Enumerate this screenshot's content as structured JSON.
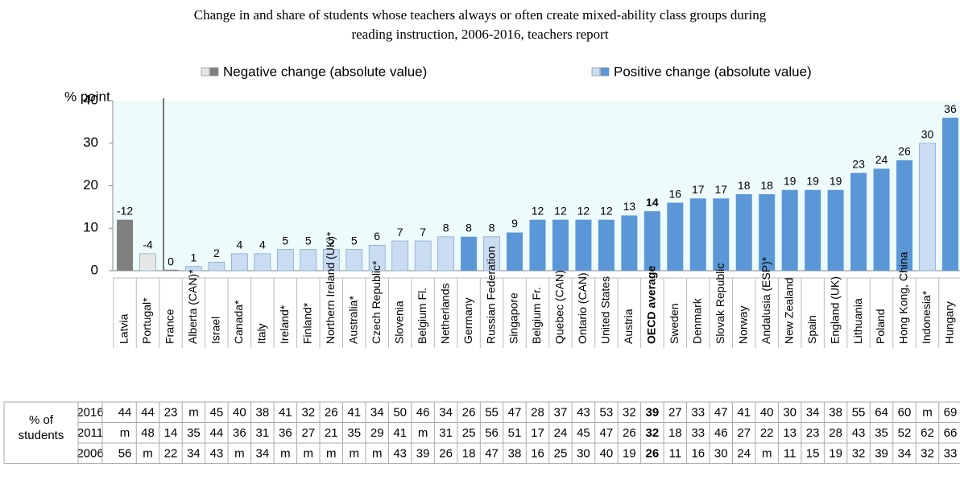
{
  "chart_data": {
    "type": "bar",
    "title": "Change in and share of students whose teachers always or often create mixed-ability class groups during",
    "title_line2": "reading instruction, 2006-2016, teachers report",
    "y_axis_label": "% point",
    "legend": [
      {
        "label": "Negative change (absolute value)",
        "colors": [
          "#e6e6e6",
          "#808080"
        ]
      },
      {
        "label": "Positive change (absolute value)",
        "colors": [
          "#c9dcf2",
          "#5b97d6"
        ]
      }
    ],
    "categories": [
      "Latvia",
      "Portugal*",
      "France",
      "Alberta (CAN)*",
      "Israel",
      "Canada*",
      "Italy",
      "Ireland*",
      "Finland*",
      "Northern Ireland (UK)*",
      "Australia*",
      "Czech Republic*",
      "Slovenia",
      "Belgium Fl.",
      "Netherlands",
      "Germany",
      "Russian Federation",
      "Singapore",
      "Belgium Fr.",
      "Quebec (CAN)",
      "Ontario (CAN)",
      "United States",
      "Austria",
      "OECD average",
      "Sweden",
      "Denmark",
      "Slovak Republic",
      "Norway",
      "Andalusia (ESP)*",
      "New Zealand",
      "Spain",
      "England (UK)",
      "Lithuania",
      "Poland",
      "Hong Kong, China",
      "Indonesia*",
      "Hungary"
    ],
    "values": [
      12,
      4,
      0,
      1,
      2,
      4,
      4,
      5,
      5,
      5,
      5,
      6,
      7,
      7,
      8,
      8,
      8,
      9,
      12,
      12,
      12,
      12,
      13,
      14,
      16,
      17,
      17,
      18,
      18,
      19,
      19,
      19,
      23,
      24,
      26,
      30,
      36
    ],
    "value_labels": [
      "-12",
      "-4",
      "0",
      "1",
      "2",
      "4",
      "4",
      "5",
      "5",
      "5",
      "5",
      "6",
      "7",
      "7",
      "8",
      "8",
      "8",
      "9",
      "12",
      "12",
      "12",
      "12",
      "13",
      "14",
      "16",
      "17",
      "17",
      "18",
      "18",
      "19",
      "19",
      "19",
      "23",
      "24",
      "26",
      "30",
      "36"
    ],
    "colors": [
      "#808080",
      "#e6e6e6",
      "#808080",
      "#c9dcf2",
      "#c9dcf2",
      "#c9dcf2",
      "#c9dcf2",
      "#c9dcf2",
      "#c9dcf2",
      "#c9dcf2",
      "#c9dcf2",
      "#c9dcf2",
      "#c9dcf2",
      "#c9dcf2",
      "#c9dcf2",
      "#5b97d6",
      "#c9dcf2",
      "#5b97d6",
      "#5b97d6",
      "#5b97d6",
      "#5b97d6",
      "#5b97d6",
      "#5b97d6",
      "#5b97d6",
      "#5b97d6",
      "#5b97d6",
      "#5b97d6",
      "#5b97d6",
      "#5b97d6",
      "#5b97d6",
      "#5b97d6",
      "#5b97d6",
      "#5b97d6",
      "#5b97d6",
      "#5b97d6",
      "#c9dcf2",
      "#5b97d6"
    ],
    "highlight": "OECD average",
    "ylim": [
      0,
      40
    ],
    "yticks": [
      0,
      10,
      20,
      30,
      40
    ]
  },
  "table": {
    "row_header": "% of students",
    "rows": [
      {
        "year": "2016",
        "cells": [
          44,
          44,
          23,
          "m",
          45,
          40,
          38,
          41,
          32,
          26,
          41,
          34,
          50,
          46,
          34,
          26,
          55,
          47,
          28,
          37,
          43,
          53,
          32,
          39,
          27,
          33,
          47,
          41,
          40,
          30,
          34,
          38,
          55,
          64,
          60,
          "m",
          69
        ]
      },
      {
        "year": "2011",
        "cells": [
          "m",
          48,
          14,
          35,
          44,
          36,
          31,
          36,
          27,
          21,
          35,
          29,
          41,
          "m",
          31,
          25,
          56,
          51,
          17,
          24,
          45,
          47,
          26,
          32,
          18,
          33,
          46,
          27,
          22,
          13,
          23,
          28,
          43,
          35,
          52,
          62,
          66
        ]
      },
      {
        "year": "2006",
        "cells": [
          56,
          "m",
          22,
          34,
          43,
          "m",
          34,
          "m",
          "m",
          "m",
          "m",
          "m",
          43,
          39,
          26,
          18,
          47,
          38,
          16,
          25,
          30,
          40,
          19,
          26,
          11,
          16,
          30,
          24,
          "m",
          11,
          15,
          19,
          32,
          39,
          34,
          32,
          33
        ]
      }
    ]
  }
}
